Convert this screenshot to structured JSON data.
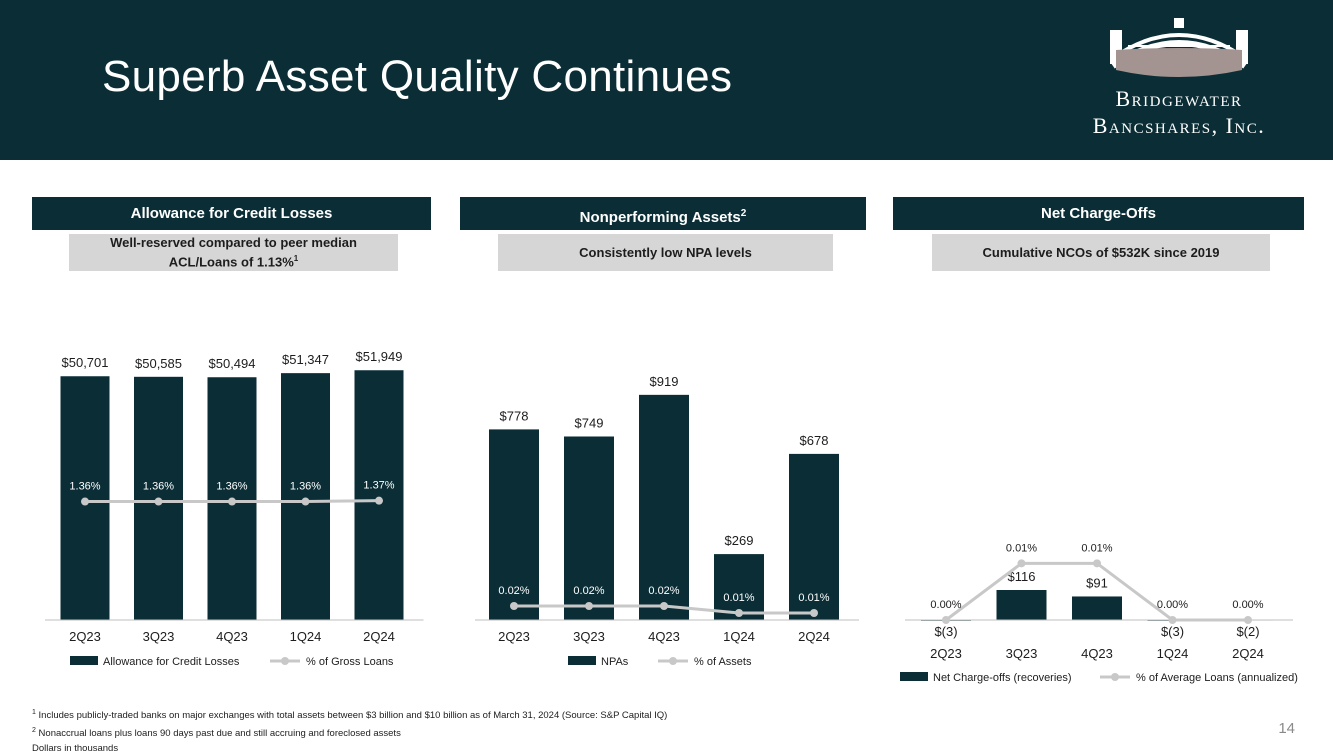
{
  "title": "Superb Asset Quality Continues",
  "logo": {
    "line1": "Bridgewater",
    "line2": "Bancshares, Inc."
  },
  "colors": {
    "navy": "#0b2e36",
    "grey_box": "#d6d6d6",
    "line": "#c8c8c8",
    "logo_taupe": "#a39491"
  },
  "panels": [
    {
      "title": "Allowance for Credit Losses",
      "title_sup": "",
      "subtitle": "Well-reserved compared to peer median ACL/Loans of 1.13%",
      "subtitle_sup": "1"
    },
    {
      "title": "Nonperforming Assets",
      "title_sup": "2",
      "subtitle": "Consistently low NPA levels",
      "subtitle_sup": ""
    },
    {
      "title": "Net Charge-Offs",
      "title_sup": "",
      "subtitle": "Cumulative NCOs of $532K since 2019",
      "subtitle_sup": ""
    }
  ],
  "chart_data": [
    {
      "type": "bar",
      "categories": [
        "2Q23",
        "3Q23",
        "4Q23",
        "1Q24",
        "2Q24"
      ],
      "series": [
        {
          "name": "Allowance for Credit Losses",
          "kind": "bar",
          "values": [
            50701,
            50585,
            50494,
            51347,
            51949
          ],
          "labels": [
            "$50,701",
            "$50,585",
            "$50,494",
            "$51,347",
            "$51,949"
          ]
        },
        {
          "name": "% of Gross Loans",
          "kind": "line",
          "values": [
            1.36,
            1.36,
            1.36,
            1.36,
            1.37
          ],
          "labels": [
            "1.36%",
            "1.36%",
            "1.36%",
            "1.36%",
            "1.37%"
          ]
        }
      ],
      "bar_range": [
        0,
        52000
      ],
      "line_range": [
        0,
        3.1
      ]
    },
    {
      "type": "bar",
      "categories": [
        "2Q23",
        "3Q23",
        "4Q23",
        "1Q24",
        "2Q24"
      ],
      "series": [
        {
          "name": "NPAs",
          "kind": "bar",
          "values": [
            778,
            749,
            919,
            269,
            678
          ],
          "labels": [
            "$778",
            "$749",
            "$919",
            "$269",
            "$678"
          ]
        },
        {
          "name": "% of Assets",
          "kind": "line",
          "values": [
            0.02,
            0.02,
            0.02,
            0.01,
            0.01
          ],
          "labels": [
            "0.02%",
            "0.02%",
            "0.02%",
            "0.01%",
            "0.01%"
          ]
        }
      ],
      "bar_range": [
        0,
        1000
      ],
      "line_range": [
        0,
        0.2
      ]
    },
    {
      "type": "bar",
      "categories": [
        "2Q23",
        "3Q23",
        "4Q23",
        "1Q24",
        "2Q24"
      ],
      "series": [
        {
          "name": "Net Charge-offs (recoveries)",
          "kind": "bar",
          "values": [
            -3,
            116,
            91,
            -3,
            -2
          ],
          "labels": [
            "$(3)",
            "$116",
            "$91",
            "$(3)",
            "$(2)"
          ]
        },
        {
          "name": "% of Average Loans (annualized)",
          "kind": "line",
          "values": [
            0.0,
            0.01,
            0.01,
            0.0,
            0.0
          ],
          "labels": [
            "0.00%",
            "0.01%",
            "0.01%",
            "0.00%",
            "0.00%"
          ]
        }
      ],
      "bar_range": [
        0,
        116
      ],
      "line_range": [
        0,
        0.03
      ]
    }
  ],
  "footnotes": {
    "note1_mark": "1",
    "note1": "Includes publicly-traded banks on major exchanges with total assets between $3 billion and $10 billion as of March 31, 2024 (Source: S&P Capital IQ)",
    "note2_mark": "2",
    "note2": "Nonaccrual loans plus loans 90 days past due and still accruing and foreclosed assets",
    "note3": "Dollars in thousands"
  },
  "page_number": "14"
}
